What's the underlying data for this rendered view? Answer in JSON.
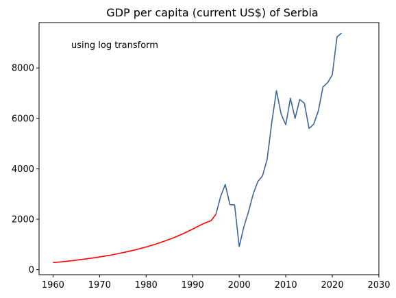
{
  "chart_data": {
    "type": "line",
    "title": "GDP per capita (current US$) of Serbia",
    "annotation": "using log transform",
    "xlabel": "",
    "ylabel": "",
    "xlim": [
      1957,
      2030
    ],
    "ylim": [
      -200,
      9800
    ],
    "x_ticks": [
      1960,
      1970,
      1980,
      1990,
      2000,
      2010,
      2020,
      2030
    ],
    "y_ticks": [
      0,
      2000,
      4000,
      6000,
      8000
    ],
    "grid": false,
    "series": [
      {
        "color": "#ff0000",
        "x": [
          1960,
          1962,
          1964,
          1966,
          1968,
          1970,
          1972,
          1974,
          1976,
          1978,
          1980,
          1982,
          1984,
          1986,
          1988,
          1990,
          1992,
          1994,
          1995
        ],
        "y": [
          280,
          315,
          355,
          400,
          450,
          505,
          565,
          635,
          715,
          800,
          900,
          1010,
          1135,
          1275,
          1430,
          1610,
          1800,
          1950,
          2200
        ]
      },
      {
        "color": "#3a6699",
        "x": [
          1995,
          1996,
          1997,
          1998,
          1999,
          2000,
          2001,
          2002,
          2003,
          2004,
          2005,
          2006,
          2007,
          2008,
          2009,
          2010,
          2011,
          2012,
          2013,
          2014,
          2015,
          2016,
          2017,
          2018,
          2019,
          2020,
          2021,
          2022
        ],
        "y": [
          2200,
          2900,
          3380,
          2580,
          2570,
          920,
          1700,
          2300,
          3000,
          3500,
          3720,
          4380,
          5850,
          7100,
          6170,
          5750,
          6800,
          6000,
          6750,
          6600,
          5600,
          5770,
          6300,
          7250,
          7420,
          7730,
          9230,
          9390
        ]
      }
    ]
  }
}
